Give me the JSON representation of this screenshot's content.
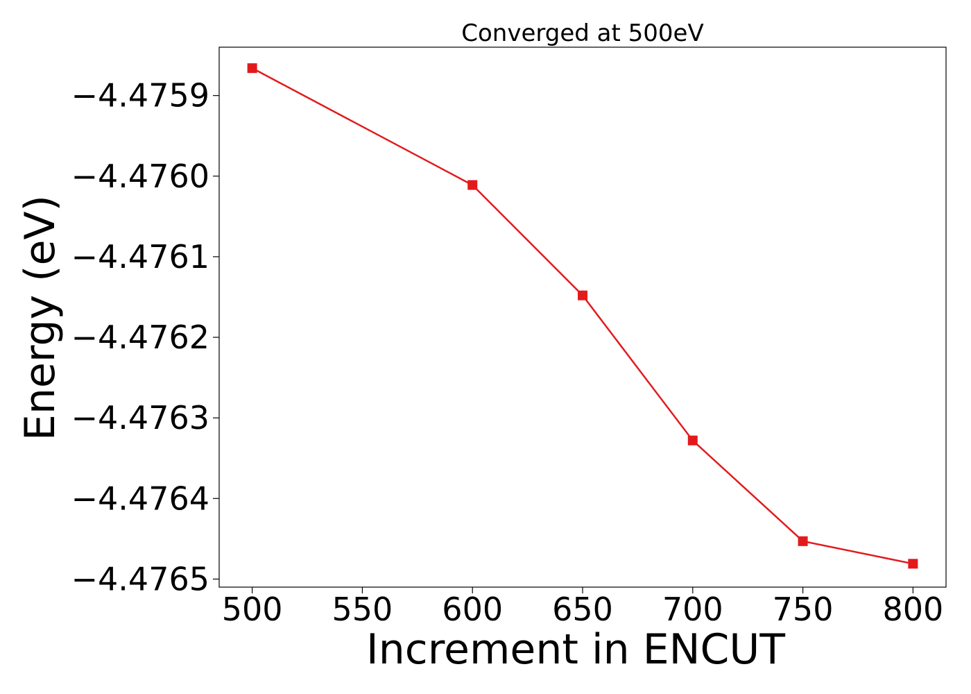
{
  "chart_data": {
    "type": "line",
    "title": "Converged at 500eV",
    "xlabel": "Increment in ENCUT",
    "ylabel": "Energy (eV)",
    "xlim": [
      485,
      815
    ],
    "ylim": [
      -4.47651,
      -4.47584
    ],
    "x_ticks": [
      500,
      550,
      600,
      650,
      700,
      750,
      800
    ],
    "x_tick_labels": [
      "500",
      "550",
      "600",
      "650",
      "700",
      "750",
      "800"
    ],
    "y_ticks": [
      -4.4759,
      -4.476,
      -4.4761,
      -4.4762,
      -4.4763,
      -4.4764,
      -4.4765
    ],
    "y_tick_labels": [
      "−4.4759",
      "−4.4760",
      "−4.4761",
      "−4.4762",
      "−4.4763",
      "−4.4764",
      "−4.4765"
    ],
    "grid": false,
    "series": [
      {
        "color": "#e31a1c",
        "marker": "square",
        "x": [
          500,
          600,
          650,
          700,
          750,
          800
        ],
        "y": [
          -4.475866,
          -4.476011,
          -4.476148,
          -4.476328,
          -4.476453,
          -4.476481
        ]
      }
    ]
  }
}
